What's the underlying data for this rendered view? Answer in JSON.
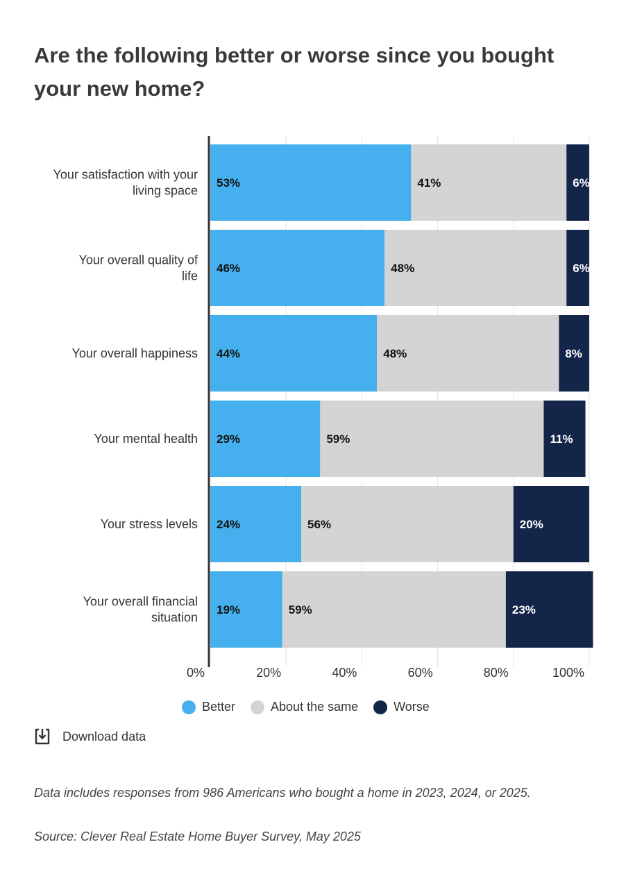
{
  "title": "Are the following better or worse since you bought your new home?",
  "chart_data": {
    "type": "bar",
    "orientation": "horizontal",
    "stacked": true,
    "categories": [
      "Your satisfaction with your living space",
      "Your overall quality of life",
      "Your overall happiness",
      "Your mental health",
      "Your stress levels",
      "Your overall financial situation"
    ],
    "series": [
      {
        "name": "Better",
        "color": "#45b0ed",
        "values": [
          53,
          46,
          44,
          29,
          24,
          19
        ]
      },
      {
        "name": "About the same",
        "color": "#d4d4d4",
        "values": [
          41,
          48,
          48,
          59,
          56,
          59
        ]
      },
      {
        "name": "Worse",
        "color": "#14254a",
        "values": [
          6,
          6,
          8,
          11,
          20,
          23
        ]
      }
    ],
    "value_suffix": "%",
    "xlim": [
      0,
      100
    ],
    "xticks": [
      "0%",
      "20%",
      "40%",
      "60%",
      "80%",
      "100%"
    ],
    "grid": true,
    "legend_position": "bottom"
  },
  "legend": {
    "better": "Better",
    "same": "About the same",
    "worse": "Worse",
    "better_color": "#45b0ed",
    "same_color": "#d4d4d4",
    "worse_color": "#14254a"
  },
  "download_label": "Download data",
  "download_icon": "download-icon",
  "note": "Data includes responses from 986 Americans who bought a home in 2023, 2024, or 2025.",
  "source": "Source: Clever Real Estate Home Buyer Survey, May 2025"
}
